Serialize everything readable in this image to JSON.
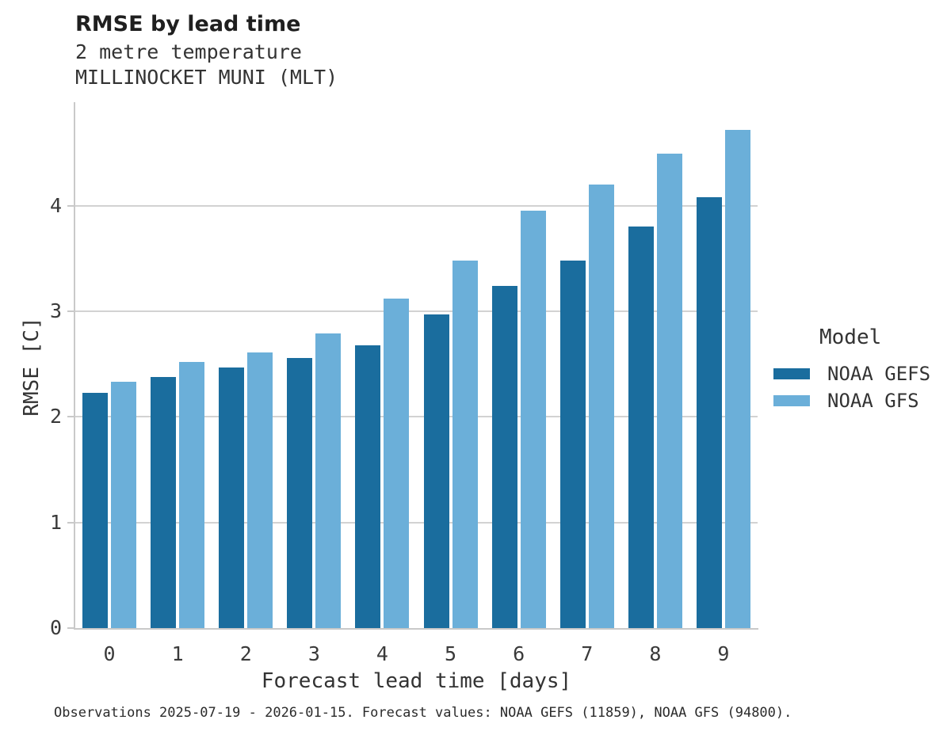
{
  "header": {
    "title": "RMSE by lead time",
    "subtitle_line1": "2 metre temperature",
    "subtitle_line2": "MILLINOCKET MUNI (MLT)"
  },
  "chart_data": {
    "type": "bar",
    "title": "RMSE by lead time",
    "subtitle": [
      "2 metre temperature",
      "MILLINOCKET MUNI (MLT)"
    ],
    "categories": [
      "0",
      "1",
      "2",
      "3",
      "4",
      "5",
      "6",
      "7",
      "8",
      "9"
    ],
    "series": [
      {
        "name": "NOAA GEFS",
        "color": "#1a6d9e",
        "values": [
          2.23,
          2.38,
          2.47,
          2.56,
          2.68,
          2.97,
          3.24,
          3.48,
          3.8,
          4.08
        ]
      },
      {
        "name": "NOAA GFS",
        "color": "#6bafd9",
        "values": [
          2.33,
          2.52,
          2.61,
          2.79,
          3.12,
          3.48,
          3.95,
          4.2,
          4.49,
          4.72
        ]
      }
    ],
    "xlabel": "Forecast lead time [days]",
    "ylabel": "RMSE [C]",
    "ylim": [
      0,
      4.98
    ],
    "yticks": [
      0,
      1,
      2,
      3,
      4
    ],
    "grid": "horizontal",
    "legend_title": "Model",
    "legend_position": "right"
  },
  "legend": {
    "title": "Model",
    "entries": [
      {
        "label": "NOAA GEFS",
        "color": "#1a6d9e"
      },
      {
        "label": "NOAA GFS",
        "color": "#6bafd9"
      }
    ]
  },
  "footer": {
    "caption": "Observations 2025-07-19 - 2026-01-15. Forecast values: NOAA GEFS (11859), NOAA GFS (94800)."
  },
  "colors": {
    "gefs": "#1a6d9e",
    "gfs": "#6bafd9",
    "gridline": "#d2d2d2",
    "spine": "#c9c9c9",
    "text": "#333333"
  }
}
